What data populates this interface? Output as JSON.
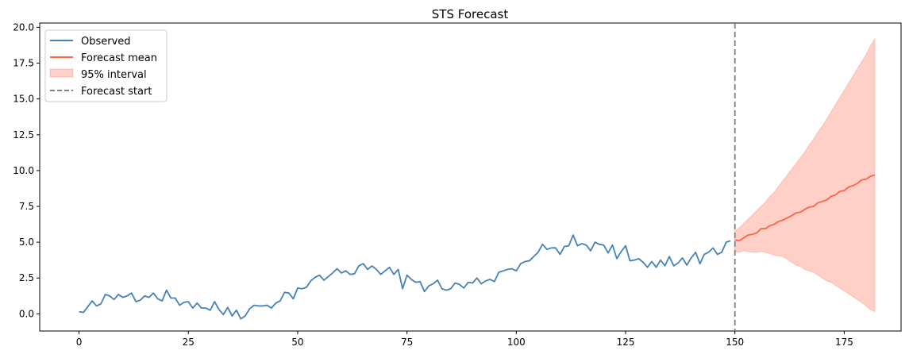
{
  "chart_data": {
    "type": "line",
    "title": "STS Forecast",
    "xlabel": "",
    "ylabel": "",
    "xlim": [
      -9,
      188
    ],
    "ylim": [
      -1.2,
      20.3
    ],
    "grid": false,
    "legend_position": "top-left",
    "x_ticks": [
      0,
      25,
      50,
      75,
      100,
      125,
      150,
      175
    ],
    "y_ticks": [
      0.0,
      2.5,
      5.0,
      7.5,
      10.0,
      12.5,
      15.0,
      17.5,
      20.0
    ],
    "y_tick_labels": [
      "0.0",
      "2.5",
      "5.0",
      "7.5",
      "10.0",
      "12.5",
      "15.0",
      "17.5",
      "20.0"
    ],
    "colors": {
      "observed": "#4682b4",
      "forecast_mean": "#ff6347",
      "interval": "#ff6347",
      "forecast_start": "#808080"
    },
    "legend": {
      "observed": "Observed",
      "forecast_mean": "Forecast mean",
      "interval": "95% interval",
      "forecast_start": "Forecast start"
    },
    "observed": {
      "x_start": 0,
      "values": [
        0.15,
        0.1,
        0.5,
        0.9,
        0.55,
        0.7,
        1.35,
        1.25,
        1.0,
        1.35,
        1.15,
        1.25,
        1.45,
        0.85,
        0.95,
        1.25,
        1.15,
        1.45,
        1.05,
        0.9,
        1.65,
        1.1,
        1.1,
        0.6,
        0.8,
        0.85,
        0.4,
        0.75,
        0.4,
        0.4,
        0.25,
        0.85,
        0.3,
        -0.05,
        0.45,
        -0.15,
        0.25,
        -0.35,
        -0.15,
        0.35,
        0.6,
        0.55,
        0.55,
        0.6,
        0.4,
        0.75,
        0.9,
        1.5,
        1.45,
        1.05,
        1.8,
        1.75,
        1.85,
        2.3,
        2.55,
        2.7,
        2.35,
        2.6,
        2.85,
        3.15,
        2.85,
        3.0,
        2.75,
        2.8,
        3.35,
        3.5,
        3.1,
        3.35,
        3.1,
        2.75,
        3.0,
        3.25,
        2.75,
        3.1,
        1.75,
        2.7,
        2.4,
        2.2,
        2.25,
        1.55,
        1.95,
        2.1,
        2.35,
        1.75,
        1.65,
        1.75,
        2.15,
        2.05,
        1.8,
        2.2,
        2.15,
        2.5,
        2.1,
        2.3,
        2.4,
        2.25,
        2.9,
        3.0,
        3.1,
        3.15,
        3.0,
        3.5,
        3.65,
        3.7,
        4.0,
        4.3,
        4.85,
        4.5,
        4.6,
        4.6,
        4.15,
        4.7,
        4.75,
        5.5,
        4.75,
        4.9,
        4.8,
        4.4,
        5.0,
        4.85,
        4.8,
        4.25,
        4.8,
        3.85,
        4.35,
        4.75,
        3.7,
        3.75,
        3.85,
        3.6,
        3.25,
        3.65,
        3.25,
        3.75,
        3.35,
        4.0,
        3.35,
        3.55,
        3.9,
        3.4,
        3.9,
        4.3,
        3.5,
        4.15,
        4.3,
        4.6,
        4.15,
        4.3,
        5.0,
        5.1
      ]
    },
    "forecast": {
      "x_start": 150,
      "mean": [
        5.15,
        5.1,
        5.3,
        5.5,
        5.55,
        5.65,
        5.95,
        5.95,
        6.15,
        6.25,
        6.45,
        6.55,
        6.7,
        6.85,
        7.05,
        7.1,
        7.3,
        7.45,
        7.5,
        7.75,
        7.85,
        7.95,
        8.2,
        8.3,
        8.55,
        8.6,
        8.85,
        8.95,
        9.1,
        9.35,
        9.4,
        9.6,
        9.7
      ],
      "lower": [
        4.3,
        4.3,
        4.4,
        4.35,
        4.3,
        4.3,
        4.35,
        4.3,
        4.2,
        4.1,
        4.05,
        4.0,
        3.8,
        3.6,
        3.4,
        3.3,
        3.1,
        3.0,
        2.9,
        2.7,
        2.5,
        2.3,
        2.2,
        2.0,
        1.8,
        1.6,
        1.4,
        1.2,
        1.0,
        0.8,
        0.55,
        0.3,
        0.15
      ],
      "upper": [
        5.8,
        6.0,
        6.3,
        6.6,
        6.9,
        7.2,
        7.5,
        7.8,
        8.2,
        8.5,
        8.9,
        9.3,
        9.7,
        10.1,
        10.5,
        10.9,
        11.3,
        11.8,
        12.2,
        12.7,
        13.1,
        13.6,
        14.1,
        14.6,
        15.1,
        15.6,
        16.1,
        16.6,
        17.1,
        17.6,
        18.1,
        18.7,
        19.2
      ]
    },
    "forecast_start_x": 150
  }
}
